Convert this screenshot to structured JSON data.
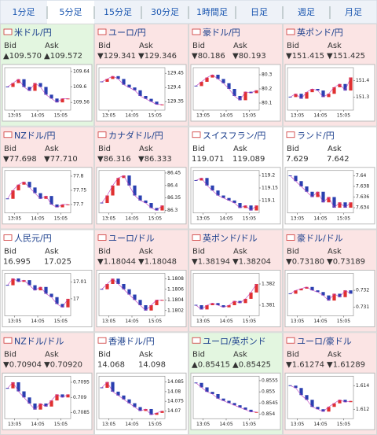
{
  "tabs": [
    "1分足",
    "5分足",
    "15分足",
    "30分足",
    "1時間足",
    "日足",
    "週足",
    "月足"
  ],
  "selected_tab": 1,
  "labels": {
    "bid": "Bid",
    "ask": "Ask"
  },
  "xticks": [
    "13:05",
    "14:05",
    "15:05"
  ],
  "panels": [
    {
      "name": "米ドル/円",
      "trend": "up",
      "bid": "▲109.570",
      "ask": "▲109.572",
      "ylim": [
        109.54,
        109.65
      ],
      "yticks": [
        109.56,
        109.6,
        109.64
      ],
      "values": [
        109.6,
        109.61,
        109.62,
        109.6,
        109.59,
        109.61,
        109.6,
        109.58,
        109.57,
        109.56,
        109.57,
        109.57
      ]
    },
    {
      "name": "ユーロ/円",
      "trend": "down",
      "bid": "▼129.341",
      "ask": "▼129.346",
      "ylim": [
        129.32,
        129.47
      ],
      "yticks": [
        129.35,
        129.4,
        129.45
      ],
      "values": [
        129.42,
        129.43,
        129.44,
        129.43,
        129.41,
        129.4,
        129.39,
        129.37,
        129.36,
        129.35,
        129.34,
        129.34
      ]
    },
    {
      "name": "豪ドル/円",
      "trend": "down",
      "bid": "▼80.186",
      "ask": "▼80.193",
      "ylim": [
        80.05,
        80.35
      ],
      "yticks": [
        80.1,
        80.2,
        80.3
      ],
      "values": [
        80.22,
        80.25,
        80.28,
        80.3,
        80.27,
        80.24,
        80.2,
        80.15,
        80.12,
        80.18,
        80.17,
        80.19
      ]
    },
    {
      "name": "英ポンド/円",
      "trend": "down",
      "bid": "▼151.415",
      "ask": "▼151.425",
      "ylim": [
        151.22,
        151.48
      ],
      "yticks": [
        151.3,
        151.4
      ],
      "values": [
        151.3,
        151.32,
        151.29,
        151.33,
        151.35,
        151.34,
        151.3,
        151.32,
        151.36,
        151.38,
        151.34,
        151.42
      ]
    },
    {
      "name": "NZドル/円",
      "trend": "down",
      "bid": "▼77.698",
      "ask": "▼77.710",
      "ylim": [
        77.67,
        77.82
      ],
      "yticks": [
        77.7,
        77.75,
        77.8
      ],
      "values": [
        77.72,
        77.75,
        77.77,
        77.78,
        77.76,
        77.74,
        77.72,
        77.73,
        77.7,
        77.69,
        77.7,
        77.7
      ]
    },
    {
      "name": "カナダドル/円",
      "trend": "down",
      "bid": "▼86.316",
      "ask": "▼86.333",
      "ylim": [
        86.29,
        86.46
      ],
      "yticks": [
        86.3,
        86.35,
        86.4,
        86.45
      ],
      "values": [
        86.33,
        86.36,
        86.4,
        86.43,
        86.44,
        86.4,
        86.36,
        86.34,
        86.33,
        86.31,
        86.3,
        86.32
      ]
    },
    {
      "name": "スイスフラン/円",
      "trend": "flat",
      "bid": "119.071",
      "ask": "119.089",
      "ylim": [
        119.05,
        119.22
      ],
      "yticks": [
        119.1,
        119.15,
        119.2
      ],
      "values": [
        119.18,
        119.19,
        119.16,
        119.14,
        119.12,
        119.11,
        119.1,
        119.09,
        119.07,
        119.08,
        119.06,
        119.08
      ]
    },
    {
      "name": "ランド/円",
      "trend": "flat",
      "bid": "7.629",
      "ask": "7.642",
      "ylim": [
        7.633,
        7.641
      ],
      "yticks": [
        7.634,
        7.636,
        7.638,
        7.64
      ],
      "values": [
        7.64,
        7.639,
        7.638,
        7.637,
        7.636,
        7.637,
        7.635,
        7.636,
        7.634,
        7.635,
        7.634,
        7.635
      ]
    },
    {
      "name": "人民元/円",
      "trend": "flat",
      "bid": "16.995",
      "ask": "17.025",
      "ylim": [
        16.99,
        17.015
      ],
      "yticks": [
        17,
        17.01
      ],
      "values": [
        17.008,
        17.012,
        17.01,
        17.011,
        17.008,
        17.005,
        17.007,
        17.003,
        17.001,
        16.997,
        16.995,
        17.0
      ]
    },
    {
      "name": "ユーロ/ドル",
      "trend": "down",
      "bid": "▼1.18044",
      "ask": "▼1.18048",
      "ylim": [
        1.1801,
        1.1809
      ],
      "yticks": [
        1.1802,
        1.1804,
        1.1806,
        1.1808
      ],
      "values": [
        1.1806,
        1.1807,
        1.1808,
        1.1807,
        1.1806,
        1.1805,
        1.1804,
        1.1803,
        1.1802,
        1.1803,
        1.1804,
        1.1804
      ]
    },
    {
      "name": "英ポンド/ドル",
      "trend": "down",
      "bid": "▼1.38194",
      "ask": "▼1.38204",
      "ylim": [
        1.3805,
        1.3825
      ],
      "yticks": [
        1.381,
        1.382
      ],
      "values": [
        1.381,
        1.3808,
        1.381,
        1.3811,
        1.381,
        1.3809,
        1.381,
        1.3812,
        1.3811,
        1.3813,
        1.3816,
        1.382
      ]
    },
    {
      "name": "豪ドル/ドル",
      "trend": "down",
      "bid": "▼0.73180",
      "ask": "▼0.73189",
      "ylim": [
        0.7305,
        0.733
      ],
      "yticks": [
        0.731,
        0.732
      ],
      "values": [
        0.7318,
        0.732,
        0.7321,
        0.7322,
        0.732,
        0.7319,
        0.7317,
        0.7314,
        0.7318,
        0.7316,
        0.732,
        0.7318
      ]
    },
    {
      "name": "NZドル/ドル",
      "trend": "down",
      "bid": "▼0.70904",
      "ask": "▼0.70920",
      "ylim": [
        0.7083,
        0.7097
      ],
      "yticks": [
        0.7085,
        0.709,
        0.7095
      ],
      "values": [
        0.7093,
        0.7095,
        0.7092,
        0.709,
        0.7088,
        0.7086,
        0.7088,
        0.7087,
        0.7089,
        0.7091,
        0.709,
        0.7091
      ]
    },
    {
      "name": "香港ドル/円",
      "trend": "flat",
      "bid": "14.068",
      "ask": "14.098",
      "ylim": [
        14.066,
        14.088
      ],
      "yticks": [
        14.07,
        14.075,
        14.08,
        14.085
      ],
      "values": [
        14.082,
        14.085,
        14.08,
        14.078,
        14.076,
        14.074,
        14.072,
        14.07,
        14.071,
        14.068,
        14.069,
        14.07
      ]
    },
    {
      "name": "ユーロ/英ポンド",
      "trend": "up",
      "bid": "▲0.85415",
      "ask": "▲0.85425",
      "ylim": [
        0.8538,
        0.8557
      ],
      "yticks": [
        0.854,
        0.8545,
        0.855,
        0.8555
      ],
      "values": [
        0.8554,
        0.8552,
        0.855,
        0.8549,
        0.8547,
        0.8546,
        0.8545,
        0.8544,
        0.8543,
        0.8542,
        0.8541,
        0.8541
      ]
    },
    {
      "name": "ユーロ/豪ドル",
      "trend": "down",
      "bid": "▼1.61274",
      "ask": "▼1.61289",
      "ylim": [
        1.6112,
        1.6148
      ],
      "yticks": [
        1.612,
        1.614
      ],
      "values": [
        1.614,
        1.6138,
        1.6132,
        1.6128,
        1.6122,
        1.612,
        1.6118,
        1.6122,
        1.6125,
        1.6128,
        1.6126,
        1.6127
      ]
    }
  ]
}
